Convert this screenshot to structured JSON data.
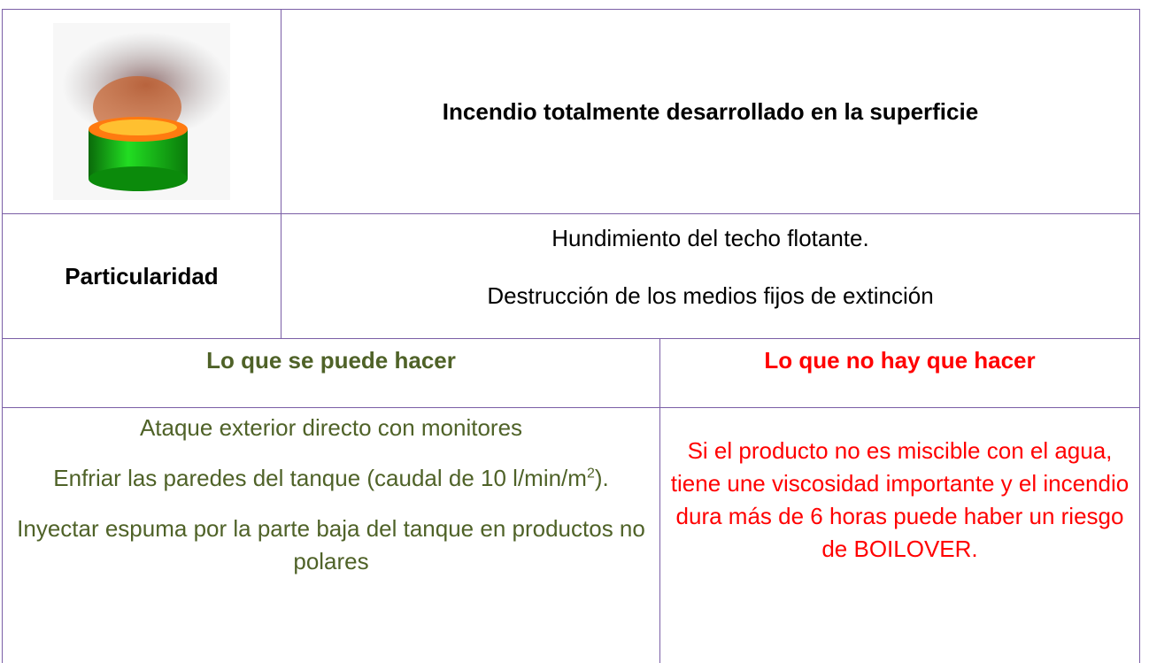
{
  "header": {
    "title": "Incendio totalmente desarrollado en la superficie"
  },
  "particularidad": {
    "label": "Particularidad",
    "items": [
      "Hundimiento del techo flotante.",
      "Destrucción de los medios fijos de extinción"
    ]
  },
  "columns": {
    "do": {
      "title": "Lo que se puede hacer",
      "items": [
        "Ataque exterior directo con monitores",
        [
          "Enfriar las paredes del tanque (caudal de 10 l/min/m",
          "2",
          ")."
        ],
        "Inyectar espuma por la parte baja del tanque en productos no polares"
      ]
    },
    "dont": {
      "title": "Lo que no hay que hacer",
      "text": "Si el producto no es miscible con el agua, tiene une viscosidad importante y el incendio dura más de 6 horas puede haber un riesgo de BOILOVER."
    }
  }
}
